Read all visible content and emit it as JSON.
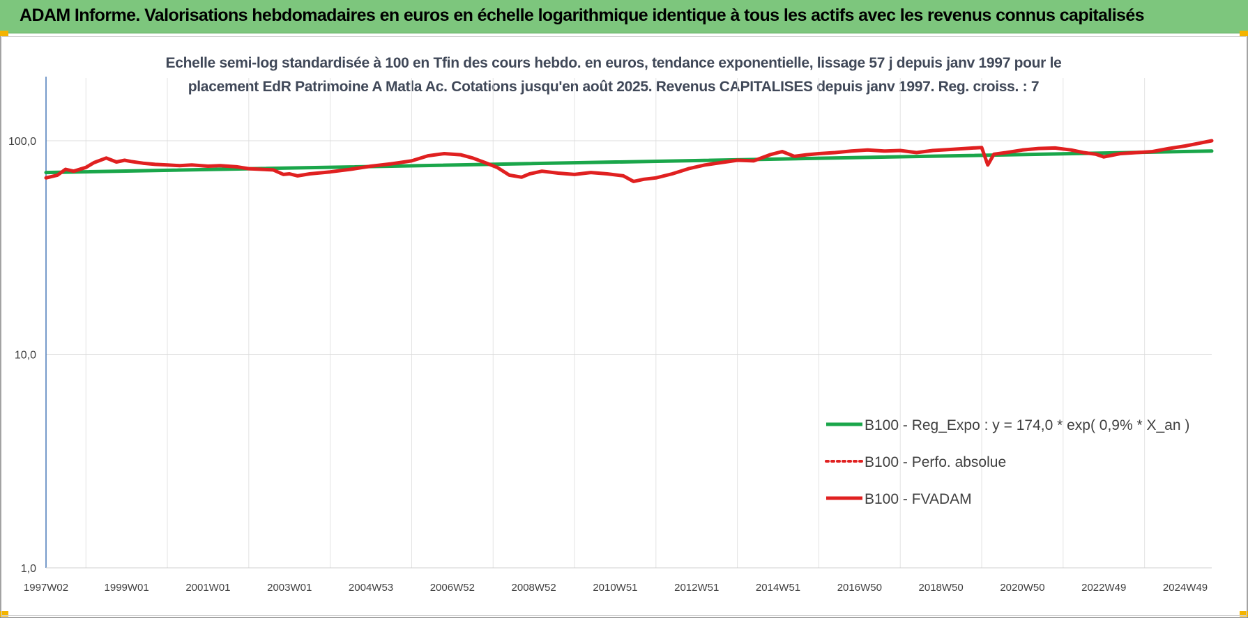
{
  "header": {
    "title": "ADAM Informe. Valorisations hebdomadaires en euros en échelle logarithmique identique à tous les actifs avec les revenus connus capitalisés"
  },
  "chart_data": {
    "type": "line",
    "title_line1": "Echelle semi-log standardisée à 100 en Tfin des cours hebdo. en euros, tendance exponentielle, lissage 57 j depuis janv 1997 pour le",
    "title_line2": "placement EdR Patrimoine A Matla Ac. Cotations jusqu'en août 2025. Revenus CAPITALISES depuis janv 1997. Reg. croiss. : 7",
    "y_scale": "log",
    "ylim": [
      1,
      100
    ],
    "y_ticks": [
      {
        "value": 100,
        "label": "100,0"
      },
      {
        "value": 10,
        "label": "10,0"
      },
      {
        "value": 1,
        "label": "1,0"
      }
    ],
    "x_range": [
      1997.02,
      2025.65
    ],
    "x_ticks": [
      {
        "value": 1997.02,
        "label": "1997W02"
      },
      {
        "value": 1999.0,
        "label": "1999W01"
      },
      {
        "value": 2001.0,
        "label": "2001W01"
      },
      {
        "value": 2003.0,
        "label": "2003W01"
      },
      {
        "value": 2005.0,
        "label": "2004W53"
      },
      {
        "value": 2007.0,
        "label": "2006W52"
      },
      {
        "value": 2009.0,
        "label": "2008W52"
      },
      {
        "value": 2011.0,
        "label": "2010W51"
      },
      {
        "value": 2013.0,
        "label": "2012W51"
      },
      {
        "value": 2015.0,
        "label": "2014W51"
      },
      {
        "value": 2017.0,
        "label": "2016W50"
      },
      {
        "value": 2019.0,
        "label": "2018W50"
      },
      {
        "value": 2021.0,
        "label": "2020W50"
      },
      {
        "value": 2023.0,
        "label": "2022W49"
      },
      {
        "value": 2025.0,
        "label": "2024W49"
      }
    ],
    "grid": true,
    "legend_position": "bottom-right",
    "series": [
      {
        "name": "B100 - Reg_Expo : y = 174,0 * exp( 0,9% *  X_an )",
        "color": "#1aa64a",
        "style": "solid",
        "x": [
          1997.02,
          2025.65
        ],
        "y": [
          71.0,
          89.5
        ]
      },
      {
        "name": "B100 - Perfo. absolue",
        "color": "#e02020",
        "style": "dotted",
        "x": [],
        "y": []
      },
      {
        "name": "B100 - FVADAM",
        "color": "#e02020",
        "style": "solid",
        "x": [
          1997.02,
          1997.3,
          1997.5,
          1997.7,
          1998.0,
          1998.2,
          1998.5,
          1998.75,
          1998.95,
          1999.1,
          1999.4,
          1999.7,
          2000.0,
          2000.3,
          2000.6,
          2001.0,
          2001.3,
          2001.7,
          2002.0,
          2002.3,
          2002.6,
          2002.85,
          2003.0,
          2003.2,
          2003.5,
          2004.0,
          2004.5,
          2005.0,
          2005.5,
          2006.0,
          2006.4,
          2006.8,
          2007.2,
          2007.5,
          2007.8,
          2008.1,
          2008.4,
          2008.7,
          2008.9,
          2009.2,
          2009.6,
          2010.0,
          2010.4,
          2010.8,
          2011.2,
          2011.45,
          2011.7,
          2012.0,
          2012.4,
          2012.8,
          2013.2,
          2013.6,
          2014.0,
          2014.4,
          2014.8,
          2015.1,
          2015.4,
          2015.7,
          2016.0,
          2016.4,
          2016.8,
          2017.2,
          2017.6,
          2018.0,
          2018.4,
          2018.8,
          2019.2,
          2019.6,
          2020.0,
          2020.15,
          2020.3,
          2020.6,
          2021.0,
          2021.4,
          2021.8,
          2022.2,
          2022.5,
          2022.8,
          2023.0,
          2023.4,
          2023.8,
          2024.2,
          2024.6,
          2025.0,
          2025.3,
          2025.65
        ],
        "y": [
          67.0,
          69.0,
          73.5,
          72.0,
          75.0,
          79.0,
          83.0,
          79.5,
          81.0,
          80.0,
          78.5,
          77.5,
          77.0,
          76.5,
          77.0,
          76.0,
          76.5,
          75.5,
          74.0,
          73.5,
          73.0,
          69.5,
          70.0,
          68.5,
          70.0,
          71.5,
          73.5,
          76.0,
          78.0,
          80.5,
          85.0,
          87.0,
          86.0,
          83.0,
          79.0,
          75.0,
          69.0,
          67.5,
          70.0,
          72.0,
          70.5,
          69.5,
          71.0,
          70.0,
          68.5,
          64.5,
          66.0,
          67.0,
          70.0,
          74.0,
          77.0,
          79.0,
          81.0,
          80.5,
          86.0,
          89.0,
          84.5,
          86.0,
          87.0,
          88.0,
          89.5,
          90.5,
          89.5,
          90.0,
          88.0,
          90.0,
          91.0,
          92.0,
          93.0,
          77.0,
          86.5,
          88.0,
          90.5,
          92.0,
          92.5,
          90.5,
          88.0,
          86.5,
          84.0,
          87.0,
          88.0,
          89.0,
          92.0,
          94.5,
          97.0,
          100.0
        ]
      }
    ]
  }
}
